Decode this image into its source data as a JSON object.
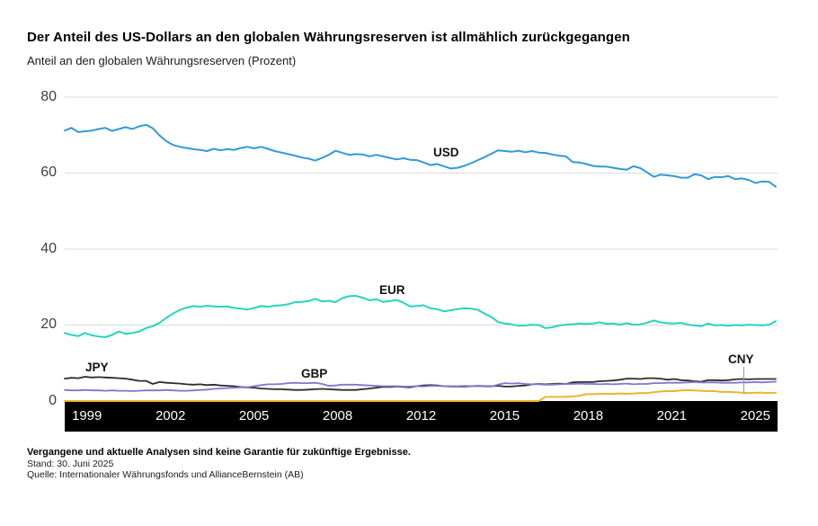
{
  "header": {
    "title": "Der Anteil des US-Dollars an den globalen Währungsreserven ist allmählich zurückgegangen",
    "subtitle": "Anteil an den globalen Währungsreserven (Prozent)"
  },
  "footer": {
    "disclaimer": "Vergangene und aktuelle Analysen sind keine Garantie für zukünftige Ergebnisse.",
    "as_of": "Stand: 30. Juni 2025",
    "source": "Quelle: Internationaler Währungsfonds und AllianceBernstein (AB)"
  },
  "chart_data": {
    "type": "line",
    "title": "Der Anteil des US-Dollars an den globalen Währungsreserven ist allmählich zurückgegangen",
    "ylabel": "Anteil an den globalen Währungsreserven (Prozent)",
    "x_unit": "quarter",
    "x_start": "1999Q1",
    "x_end": "2025Q2",
    "x_quarters_total": 106,
    "x_tick_labels": [
      "1999",
      "2002",
      "2005",
      "2008",
      "2012",
      "2015",
      "2018",
      "2021",
      "2025"
    ],
    "ylim": [
      0,
      80
    ],
    "y_ticks": [
      80,
      60,
      40,
      20,
      0
    ],
    "y_gridlines": [
      20,
      40,
      60,
      80
    ],
    "grid": "horizontal",
    "legend_position": "inline-labels",
    "colors": {
      "grid": "#d9d9d9",
      "axis_band": "#000000",
      "axis_band_text": "#ffffff",
      "tick_text": "#3f3f3f"
    },
    "series": [
      {
        "name": "USD",
        "color": "#3399d7",
        "width": 2,
        "label_anchor": {
          "q": 54.4,
          "v": 64.1
        },
        "values": [
          71.2,
          71.9,
          70.8,
          71.0,
          71.2,
          71.6,
          71.9,
          71.1,
          71.6,
          72.1,
          71.6,
          72.3,
          72.7,
          71.8,
          69.9,
          68.4,
          67.4,
          66.9,
          66.6,
          66.3,
          66.1,
          65.8,
          66.4,
          66.0,
          66.3,
          66.1,
          66.6,
          66.9,
          66.5,
          66.9,
          66.4,
          65.8,
          65.4,
          65.0,
          64.6,
          64.1,
          63.8,
          63.3,
          64.0,
          64.8,
          65.9,
          65.3,
          64.8,
          65.0,
          64.9,
          64.4,
          64.8,
          64.4,
          64.0,
          63.6,
          63.9,
          63.5,
          63.4,
          62.8,
          62.1,
          62.4,
          61.8,
          61.2,
          61.4,
          61.9,
          62.6,
          63.4,
          64.2,
          65.1,
          66.0,
          65.8,
          65.6,
          65.9,
          65.5,
          65.8,
          65.4,
          65.3,
          64.9,
          64.6,
          64.4,
          62.9,
          62.8,
          62.4,
          61.9,
          61.7,
          61.7,
          61.4,
          61.1,
          60.9,
          61.8,
          61.3,
          60.2,
          59.0,
          59.6,
          59.4,
          59.2,
          58.8,
          58.8,
          59.7,
          59.4,
          58.4,
          59.0,
          58.9,
          59.2,
          58.4,
          58.6,
          58.2,
          57.4,
          57.8,
          57.7,
          56.4
        ]
      },
      {
        "name": "EUR",
        "color": "#25d5be",
        "width": 2,
        "label_anchor": {
          "q": 46.5,
          "v": 27.9
        },
        "values": [
          17.9,
          17.4,
          17.1,
          17.9,
          17.3,
          17.0,
          16.8,
          17.4,
          18.3,
          17.7,
          17.9,
          18.3,
          19.2,
          19.7,
          20.6,
          21.9,
          23.0,
          24.0,
          24.6,
          25.0,
          24.8,
          25.1,
          24.9,
          24.8,
          24.9,
          24.5,
          24.3,
          24.1,
          24.5,
          25.0,
          24.8,
          25.1,
          25.2,
          25.5,
          26.0,
          26.1,
          26.3,
          26.9,
          26.2,
          26.4,
          26.0,
          27.1,
          27.6,
          27.7,
          27.2,
          26.5,
          26.8,
          26.1,
          26.3,
          26.6,
          25.9,
          24.9,
          25.0,
          25.2,
          24.4,
          24.2,
          23.6,
          23.9,
          24.2,
          24.4,
          24.3,
          24.0,
          23.0,
          22.1,
          20.8,
          20.4,
          20.2,
          19.8,
          19.9,
          20.1,
          20.0,
          19.2,
          19.4,
          19.9,
          20.1,
          20.2,
          20.4,
          20.3,
          20.4,
          20.7,
          20.3,
          20.4,
          20.1,
          20.5,
          20.1,
          20.2,
          20.6,
          21.2,
          20.7,
          20.5,
          20.4,
          20.6,
          20.1,
          19.9,
          19.7,
          20.4,
          19.9,
          20.0,
          19.8,
          20.0,
          19.9,
          20.1,
          20.0,
          19.9,
          20.1,
          21.0
        ]
      },
      {
        "name": "JPY",
        "color": "#2c2c2c",
        "width": 1.8,
        "label_anchor": {
          "q": 3.1,
          "v": 7.6
        },
        "values": [
          5.9,
          6.1,
          6.0,
          6.4,
          6.2,
          6.3,
          6.2,
          6.1,
          6.0,
          5.9,
          5.6,
          5.3,
          5.3,
          4.5,
          5.0,
          4.8,
          4.7,
          4.6,
          4.4,
          4.3,
          4.4,
          4.2,
          4.3,
          4.1,
          4.0,
          3.9,
          3.7,
          3.6,
          3.5,
          3.3,
          3.2,
          3.1,
          3.1,
          3.0,
          2.9,
          2.9,
          3.0,
          3.1,
          3.2,
          3.1,
          3.0,
          2.9,
          2.9,
          2.9,
          3.1,
          3.3,
          3.5,
          3.7,
          3.7,
          3.8,
          3.7,
          3.6,
          3.9,
          4.1,
          4.2,
          4.1,
          3.9,
          3.8,
          3.8,
          3.8,
          3.9,
          4.0,
          3.9,
          3.9,
          4.0,
          3.8,
          3.8,
          4.0,
          4.1,
          4.4,
          4.5,
          4.4,
          4.5,
          4.6,
          4.5,
          4.9,
          5.0,
          5.0,
          5.0,
          5.2,
          5.3,
          5.4,
          5.6,
          5.9,
          5.9,
          5.8,
          6.0,
          6.0,
          5.9,
          5.6,
          5.8,
          5.5,
          5.4,
          5.2,
          5.1,
          5.5,
          5.5,
          5.4,
          5.5,
          5.7,
          5.8,
          5.7,
          5.8,
          5.8,
          5.8,
          5.8
        ]
      },
      {
        "name": "GBP",
        "color": "#7d76d4",
        "width": 1.8,
        "label_anchor": {
          "q": 34.9,
          "v": 5.9
        },
        "values": [
          2.9,
          2.8,
          2.8,
          2.9,
          2.8,
          2.8,
          2.7,
          2.8,
          2.7,
          2.7,
          2.6,
          2.7,
          2.8,
          2.8,
          2.8,
          2.9,
          2.8,
          2.7,
          2.7,
          2.8,
          2.9,
          3.0,
          3.2,
          3.3,
          3.4,
          3.5,
          3.6,
          3.6,
          3.9,
          4.2,
          4.4,
          4.4,
          4.5,
          4.7,
          4.8,
          4.7,
          4.7,
          4.8,
          4.5,
          4.0,
          4.1,
          4.3,
          4.3,
          4.3,
          4.2,
          4.1,
          4.0,
          3.9,
          3.9,
          3.9,
          3.8,
          3.8,
          3.9,
          3.8,
          4.0,
          4.0,
          3.9,
          3.9,
          3.9,
          4.0,
          3.9,
          3.9,
          3.8,
          3.8,
          4.3,
          4.7,
          4.6,
          4.7,
          4.5,
          4.4,
          4.4,
          4.3,
          4.3,
          4.4,
          4.5,
          4.5,
          4.6,
          4.5,
          4.5,
          4.4,
          4.5,
          4.4,
          4.5,
          4.6,
          4.4,
          4.5,
          4.5,
          4.7,
          4.7,
          4.8,
          4.8,
          4.8,
          4.9,
          5.0,
          4.9,
          4.9,
          4.9,
          4.8,
          4.8,
          4.8,
          4.9,
          4.9,
          5.0,
          4.9,
          5.0,
          5.1
        ]
      },
      {
        "name": "CNY",
        "color": "#f0b42e",
        "width": 2,
        "label_anchor": {
          "q": 98.0,
          "v": 9.7
        },
        "leader": {
          "q": 100.2,
          "v_top": 9.0,
          "v_bottom": 2.0
        },
        "values": [
          0,
          0,
          0,
          0,
          0,
          0,
          0,
          0,
          0,
          0,
          0,
          0,
          0,
          0,
          0,
          0,
          0,
          0,
          0,
          0,
          0,
          0,
          0,
          0,
          0,
          0,
          0,
          0,
          0,
          0,
          0,
          0,
          0,
          0,
          0,
          0,
          0,
          0,
          0,
          0,
          0,
          0,
          0,
          0,
          0,
          0,
          0,
          0,
          0,
          0,
          0,
          0,
          0,
          0,
          0,
          0,
          0,
          0,
          0,
          0,
          0,
          0,
          0,
          0,
          0,
          0,
          0,
          0,
          0,
          0,
          0,
          1.1,
          1.1,
          1.1,
          1.1,
          1.2,
          1.4,
          1.8,
          1.8,
          1.9,
          1.9,
          1.9,
          2.0,
          1.9,
          2.0,
          2.1,
          2.1,
          2.3,
          2.5,
          2.6,
          2.6,
          2.8,
          2.9,
          2.8,
          2.7,
          2.6,
          2.6,
          2.4,
          2.4,
          2.3,
          2.2,
          2.1,
          2.2,
          2.2,
          2.1,
          2.2
        ]
      }
    ]
  }
}
